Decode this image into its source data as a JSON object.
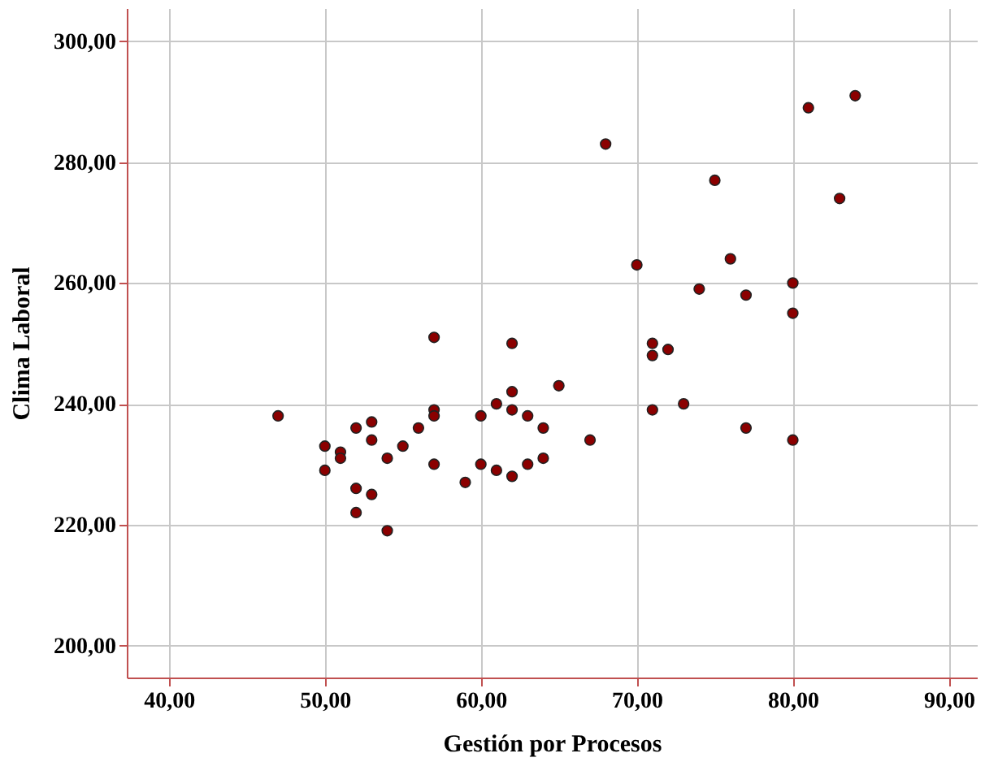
{
  "chart_data": {
    "type": "scatter",
    "xlabel": "Gestión por Procesos",
    "ylabel": "Clima Laboral",
    "x": [
      47,
      50,
      50,
      51,
      51,
      52,
      52,
      52,
      53,
      53,
      53,
      54,
      54,
      55,
      56,
      57,
      57,
      57,
      57,
      59,
      60,
      60,
      61,
      61,
      62,
      62,
      62,
      62,
      63,
      63,
      64,
      64,
      65,
      67,
      68,
      70,
      71,
      71,
      71,
      72,
      73,
      74,
      75,
      76,
      77,
      77,
      80,
      80,
      80,
      81,
      83,
      84
    ],
    "values": [
      238,
      233,
      229,
      232,
      231,
      236,
      226,
      222,
      237,
      234,
      225,
      231,
      219,
      233,
      236,
      251,
      239,
      238,
      230,
      227,
      238,
      230,
      240,
      229,
      250,
      242,
      239,
      228,
      238,
      230,
      236,
      231,
      243,
      234,
      283,
      263,
      250,
      248,
      239,
      249,
      240,
      259,
      277,
      264,
      258,
      236,
      260,
      255,
      234,
      289,
      274,
      291
    ],
    "color": "#8b0000",
    "marker": "circle",
    "xlim": [
      37.3,
      91.8
    ],
    "xticks": [
      {
        "value": 40,
        "label": "40,00"
      },
      {
        "value": 50,
        "label": "50,00"
      },
      {
        "value": 60,
        "label": "60,00"
      },
      {
        "value": 70,
        "label": "70,00"
      },
      {
        "value": 80,
        "label": "80,00"
      },
      {
        "value": 90,
        "label": "90,00"
      }
    ],
    "ylim": [
      194.7,
      305.5
    ],
    "yticks": [
      {
        "value": 200,
        "label": "200,00"
      },
      {
        "value": 220,
        "label": "220,00"
      },
      {
        "value": 240,
        "label": "240,00"
      },
      {
        "value": 260,
        "label": "260,00"
      },
      {
        "value": 280,
        "label": "280,00"
      },
      {
        "value": 300,
        "label": "300,00"
      }
    ],
    "grid": true
  }
}
